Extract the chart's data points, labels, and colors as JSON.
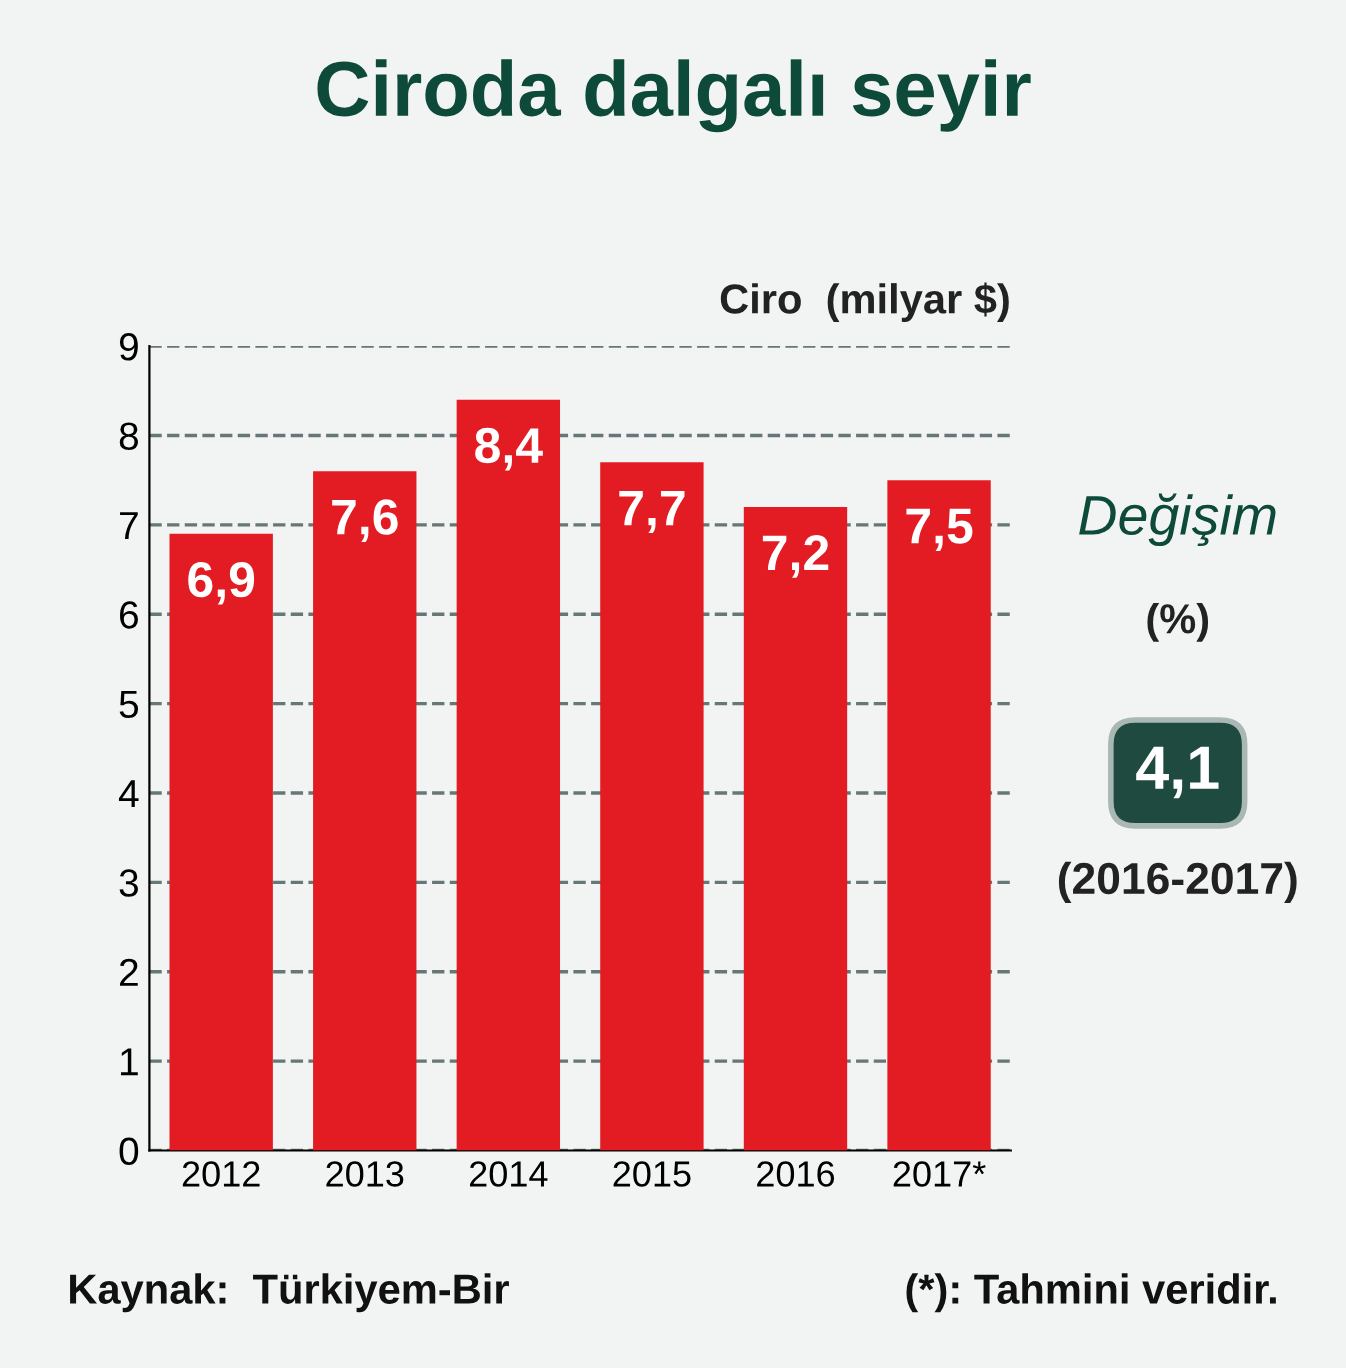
{
  "chart_data": {
    "type": "bar",
    "title": "Ciroda dalgalı seyir",
    "ylabel": "Ciro  (milyar $)",
    "categories": [
      "2012",
      "2013",
      "2014",
      "2015",
      "2016",
      "2017*"
    ],
    "values": [
      6.9,
      7.6,
      8.4,
      7.7,
      7.2,
      7.5
    ],
    "value_labels": [
      "6,9",
      "7,6",
      "8,4",
      "7,7",
      "7,2",
      "7,5"
    ],
    "color": "#e31b23",
    "ylim": [
      0,
      9
    ],
    "yticks": [
      0,
      1,
      2,
      3,
      4,
      5,
      6,
      7,
      8,
      9
    ],
    "grid": "y",
    "annotations": [
      "Değişim",
      "(%)",
      "4,1",
      "(2016-2017)",
      "Kaynak:  Türkiyem-Bir",
      "(*): Tahmini veridir."
    ]
  }
}
